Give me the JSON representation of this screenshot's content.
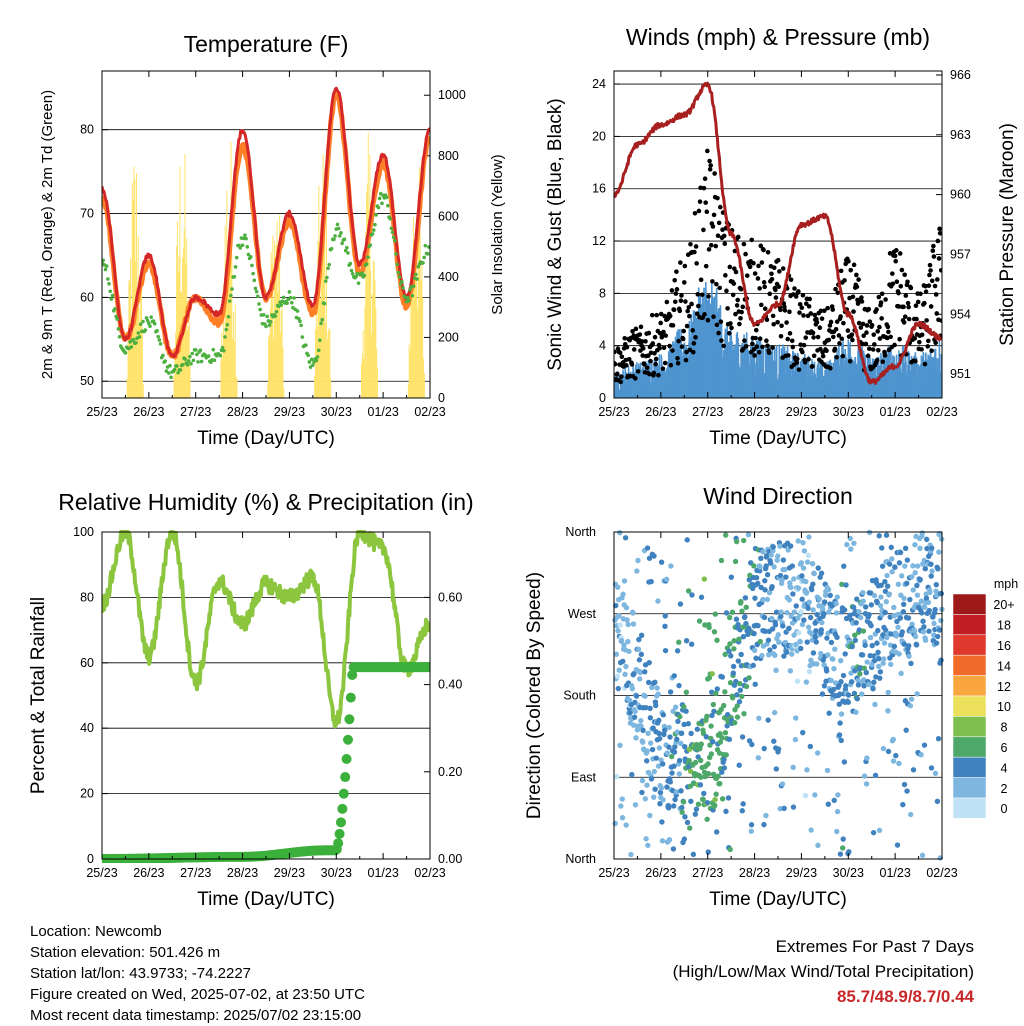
{
  "colors": {
    "t2m": "#ff7f27",
    "t9m": "#d62728",
    "td": "#4daf3f",
    "solar": "#ffe36b",
    "gust": "#000000",
    "wind": "#4f94cf",
    "pressure": "#a71f1f",
    "rh": "#8cc63f",
    "precip": "#3bb03b"
  },
  "panels": {
    "temp": {
      "title": "Temperature (F)",
      "xlabel": "Time (Day/UTC)",
      "ylabel": "2m & 9m T (Red, Orange) & 2m Td (Green)",
      "ylabel2": "Solar Insolation (Yellow)",
      "xticks": [
        "25/23",
        "26/23",
        "27/23",
        "28/23",
        "29/23",
        "30/23",
        "01/23",
        "02/23"
      ],
      "yticks": [
        "50",
        "60",
        "70",
        "80"
      ],
      "yticks2": [
        "0",
        "200",
        "400",
        "600",
        "800",
        "1000"
      ]
    },
    "wind": {
      "title": "Winds (mph) & Pressure (mb)",
      "xlabel": "Time (Day/UTC)",
      "ylabel": "Sonic Wind & Gust (Blue, Black)",
      "ylabel2": "Station Pressure (Maroon)",
      "xticks": [
        "25/23",
        "26/23",
        "27/23",
        "28/23",
        "29/23",
        "30/23",
        "01/23",
        "02/23"
      ],
      "yticks": [
        "0",
        "4",
        "8",
        "12",
        "16",
        "20",
        "24"
      ],
      "yticks2": [
        "951",
        "954",
        "957",
        "960",
        "963",
        "966"
      ]
    },
    "rh": {
      "title": "Relative Humidity (%) & Precipitation (in)",
      "xlabel": "Time (Day/UTC)",
      "ylabel": "Percent & Total Rainfall",
      "xticks": [
        "25/23",
        "26/23",
        "27/23",
        "28/23",
        "29/23",
        "30/23",
        "01/23",
        "02/23"
      ],
      "yticks": [
        "0",
        "20",
        "40",
        "60",
        "80",
        "100"
      ],
      "yticks2": [
        "0.00",
        "0.20",
        "0.40",
        "0.60"
      ]
    },
    "dir": {
      "title": "Wind Direction",
      "xlabel": "Time (Day/UTC)",
      "ylabel": "Direction (Colored By Speed)",
      "xticks": [
        "25/23",
        "26/23",
        "27/23",
        "28/23",
        "29/23",
        "30/23",
        "01/23",
        "02/23"
      ],
      "yticks": [
        "North",
        "East",
        "South",
        "West",
        "North"
      ],
      "legend_title": "mph",
      "legend_labels": [
        "20+",
        "18",
        "16",
        "14",
        "12",
        "10",
        "8",
        "6",
        "4",
        "2",
        "0"
      ],
      "legend_colors": [
        "#9e1a1a",
        "#c21f25",
        "#e03a2e",
        "#f06a2a",
        "#f9a63f",
        "#ece05a",
        "#7fbf4d",
        "#4ea86a",
        "#3f82bf",
        "#7db7e0",
        "#bfe2f7"
      ]
    }
  },
  "info": {
    "location": "Location: Newcomb",
    "elevation": "Station elevation: 501.426 m",
    "latlon": "Station lat/lon: 43.9733; -74.2227",
    "created": "Figure created on Wed, 2025-07-02, at 23:50 UTC",
    "recent": "Most recent data timestamp: 2025/07/02 23:15:00"
  },
  "extremes": {
    "line1": "Extremes For Past 7 Days",
    "line2": "(High/Low/Max Wind/Total Precipitation)",
    "values": "85.7/48.9/8.7/0.44"
  },
  "chart_data": [
    {
      "type": "line",
      "title": "Temperature (F)",
      "x": [
        0,
        0.5,
        1,
        1.5,
        2,
        2.5,
        3,
        3.5,
        4,
        4.5,
        5,
        5.5,
        6,
        6.5,
        7
      ],
      "xlabel": "Time (Day/UTC)",
      "ylim": [
        48,
        87
      ],
      "y2lim": [
        0,
        1080
      ],
      "series": [
        {
          "name": "9m T",
          "values": [
            73,
            55,
            65,
            53,
            60,
            58,
            80,
            60,
            70,
            59,
            85,
            64,
            77,
            60,
            80
          ]
        },
        {
          "name": "2m T",
          "values": [
            72,
            55,
            64,
            53,
            60,
            57,
            78,
            60,
            69,
            58,
            84,
            63,
            76,
            59,
            79
          ]
        },
        {
          "name": "2m Td",
          "values": [
            64,
            54,
            57,
            51,
            53,
            53,
            67,
            57,
            60,
            52,
            68,
            62,
            72,
            60,
            66
          ]
        },
        {
          "name": "Solar",
          "values": [
            0,
            0,
            900,
            0,
            950,
            0,
            700,
            0,
            800,
            0,
            900,
            0,
            900,
            0,
            850
          ]
        }
      ]
    },
    {
      "type": "line",
      "title": "Winds (mph) & Pressure (mb)",
      "x": [
        0,
        0.5,
        1,
        1.5,
        2,
        2.5,
        3,
        3.5,
        4,
        4.5,
        5,
        5.5,
        6,
        6.5,
        7
      ],
      "xlabel": "Time (Day/UTC)",
      "ylim": [
        0,
        25
      ],
      "y2lim": [
        949.8,
        966.2
      ],
      "series": [
        {
          "name": "Gust",
          "values": [
            3,
            4,
            5,
            8,
            14,
            10,
            9,
            8,
            6,
            5,
            8,
            5,
            9,
            6,
            10
          ]
        },
        {
          "name": "Wind",
          "values": [
            1.5,
            2,
            2.5,
            4,
            7,
            4,
            3.5,
            3,
            2.5,
            2,
            3.5,
            2.5,
            3,
            2.5,
            3.5
          ]
        },
        {
          "name": "Pressure",
          "values": [
            960,
            962.5,
            963.5,
            964,
            965.5,
            958,
            953.5,
            954.5,
            958.5,
            958.9,
            954,
            950.6,
            951.4,
            953.5,
            952.8
          ]
        }
      ]
    },
    {
      "type": "line",
      "title": "Relative Humidity (%) & Precipitation (in)",
      "x": [
        0,
        0.5,
        1,
        1.5,
        2,
        2.5,
        3,
        3.5,
        4,
        4.5,
        5,
        5.5,
        6,
        6.5,
        7
      ],
      "xlabel": "Time (Day/UTC)",
      "ylim": [
        0,
        100
      ],
      "y2lim": [
        0,
        0.75
      ],
      "series": [
        {
          "name": "RH",
          "values": [
            78,
            100,
            62,
            100,
            54,
            85,
            72,
            84,
            80,
            86,
            42,
            100,
            95,
            58,
            72
          ]
        },
        {
          "name": "Precip",
          "values": [
            0,
            0,
            0.005,
            0.005,
            0.005,
            0.005,
            0.01,
            0.015,
            0.015,
            0.02,
            0.02,
            0.44,
            0.44,
            0.44,
            0.44
          ]
        }
      ]
    },
    {
      "type": "scatter",
      "title": "Wind Direction",
      "xlabel": "Time (Day/UTC)",
      "ylabel": "Direction (Colored By Speed)",
      "legend": "right",
      "points_by_day": [
        {
          "day": 0,
          "dir_deg": 260,
          "speed": 2
        },
        {
          "day": 1,
          "dir_deg": 120,
          "speed": 3
        },
        {
          "day": 2,
          "dir_deg": 95,
          "speed": 6
        },
        {
          "day": 3,
          "dir_deg": 280,
          "speed": 4
        },
        {
          "day": 4,
          "dir_deg": 290,
          "speed": 2
        },
        {
          "day": 5,
          "dir_deg": 210,
          "speed": 4
        },
        {
          "day": 6,
          "dir_deg": 280,
          "speed": 3
        },
        {
          "day": 7,
          "dir_deg": 300,
          "speed": 3
        }
      ]
    }
  ]
}
